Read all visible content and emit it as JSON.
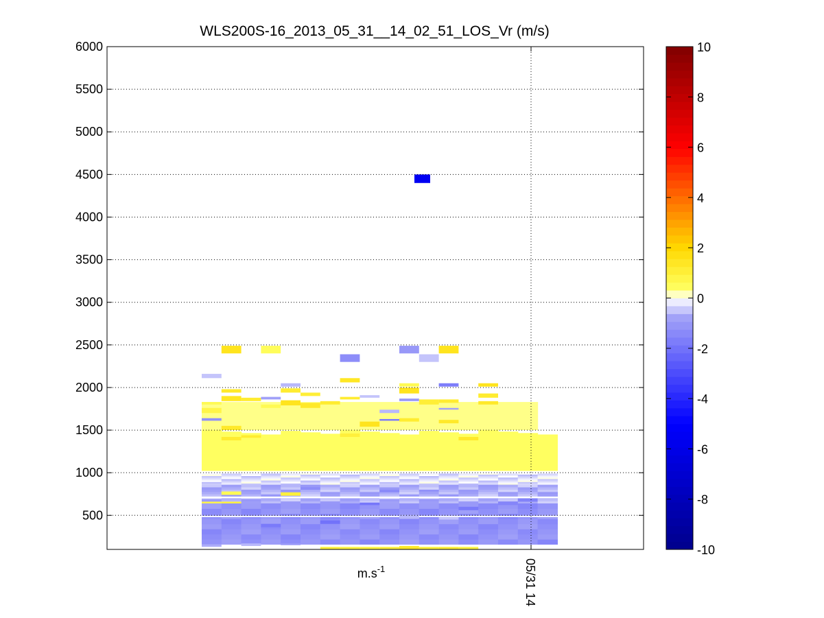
{
  "chart_data": {
    "type": "heatmap",
    "title": "WLS200S-16_2013_05_31__14_02_51_LOS_Vr (m/s)",
    "xlabel": "m.s-1",
    "xlabel_base": "m.s",
    "xlabel_exponent": "-1",
    "ylabel": "",
    "ylim": [
      100,
      6000
    ],
    "y_ticks": [
      500,
      1000,
      1500,
      2000,
      2500,
      3000,
      3500,
      4000,
      4500,
      5000,
      5500,
      6000
    ],
    "x_ticks": [
      "05/31 14"
    ],
    "grid": true,
    "colorbar": {
      "range": [
        -10,
        10
      ],
      "ticks": [
        -10,
        -8,
        -6,
        -4,
        -2,
        0,
        2,
        4,
        6,
        8,
        10
      ],
      "stops": [
        "#00008b",
        "#0000ff",
        "#a0a0f8",
        "#ffffff",
        "#ffff60",
        "#ffd800",
        "#ff0000",
        "#800000"
      ]
    },
    "columns": 18,
    "cells": [
      {
        "col": 8,
        "y0": 4400,
        "y1": 4500,
        "v": -5.5
      },
      {
        "col": 1,
        "y0": 2400,
        "y1": 2490,
        "v": 1.5
      },
      {
        "col": 3,
        "y0": 2400,
        "y1": 2490,
        "v": 0.5
      },
      {
        "col": 12,
        "y0": 2400,
        "y1": 2490,
        "v": 1.5
      },
      {
        "col": 7,
        "y0": 2300,
        "y1": 2390,
        "v": -1.3
      },
      {
        "col": 10,
        "y0": 2400,
        "y1": 2490,
        "v": -1.0
      },
      {
        "col": 11,
        "y0": 2300,
        "y1": 2390,
        "v": -0.5
      },
      {
        "col": 0,
        "y0": 2110,
        "y1": 2160,
        "v": -0.5
      },
      {
        "col": 7,
        "y0": 2060,
        "y1": 2110,
        "v": 1.4
      },
      {
        "col": 4,
        "y0": 2010,
        "y1": 2050,
        "v": -0.6
      },
      {
        "col": 10,
        "y0": 2010,
        "y1": 2050,
        "v": 0.6
      },
      {
        "col": 12,
        "y0": 2010,
        "y1": 2050,
        "v": -1.7
      },
      {
        "col": 14,
        "y0": 2010,
        "y1": 2050,
        "v": 1.5
      },
      {
        "col": 0,
        "y0": 1800,
        "y1": 1830,
        "v": 0.6
      },
      {
        "col": 0,
        "y0": 1700,
        "y1": 1760,
        "v": 0.8
      },
      {
        "col": 0,
        "y0": 1610,
        "y1": 1640,
        "v": -1.2
      },
      {
        "col": 1,
        "y0": 1940,
        "y1": 1980,
        "v": 1.3
      },
      {
        "col": 1,
        "y0": 1840,
        "y1": 1900,
        "v": 1.4
      },
      {
        "col": 1,
        "y0": 1500,
        "y1": 1550,
        "v": 1.3
      },
      {
        "col": 2,
        "y0": 1840,
        "y1": 1880,
        "v": 1.2
      },
      {
        "col": 3,
        "y0": 1860,
        "y1": 1890,
        "v": -0.8
      },
      {
        "col": 3,
        "y0": 1760,
        "y1": 1800,
        "v": 0.6
      },
      {
        "col": 4,
        "y0": 1940,
        "y1": 1990,
        "v": 1.2
      },
      {
        "col": 4,
        "y0": 1790,
        "y1": 1850,
        "v": 1.5
      },
      {
        "col": 5,
        "y0": 1900,
        "y1": 1940,
        "v": 1.1
      },
      {
        "col": 5,
        "y0": 1760,
        "y1": 1820,
        "v": 1.3
      },
      {
        "col": 6,
        "y0": 1800,
        "y1": 1840,
        "v": 1.2
      },
      {
        "col": 7,
        "y0": 1860,
        "y1": 1890,
        "v": 1.2
      },
      {
        "col": 7,
        "y0": 1420,
        "y1": 1460,
        "v": 1.0
      },
      {
        "col": 8,
        "y0": 1540,
        "y1": 1600,
        "v": 1.5
      },
      {
        "col": 8,
        "y0": 1880,
        "y1": 1910,
        "v": -0.5
      },
      {
        "col": 9,
        "y0": 1610,
        "y1": 1630,
        "v": -1.8
      },
      {
        "col": 9,
        "y0": 1700,
        "y1": 1740,
        "v": -0.6
      },
      {
        "col": 10,
        "y0": 1930,
        "y1": 2000,
        "v": 1.5
      },
      {
        "col": 10,
        "y0": 1600,
        "y1": 1640,
        "v": 1.2
      },
      {
        "col": 10,
        "y0": 1840,
        "y1": 1870,
        "v": -1.0
      },
      {
        "col": 11,
        "y0": 1800,
        "y1": 1860,
        "v": 1.1
      },
      {
        "col": 12,
        "y0": 1820,
        "y1": 1860,
        "v": 1.2
      },
      {
        "col": 12,
        "y0": 1580,
        "y1": 1620,
        "v": 1.3
      },
      {
        "col": 12,
        "y0": 1740,
        "y1": 1760,
        "v": -0.8
      },
      {
        "col": 13,
        "y0": 1380,
        "y1": 1420,
        "v": 1.3
      },
      {
        "col": 14,
        "y0": 1880,
        "y1": 1930,
        "v": 1.2
      },
      {
        "col": 14,
        "y0": 1800,
        "y1": 1840,
        "v": 1.3
      },
      {
        "col": 0,
        "y0": 1100,
        "y1": 1400,
        "v": 0.4
      },
      {
        "col": 1,
        "y0": 1380,
        "y1": 1420,
        "v": 1.2
      },
      {
        "col": 2,
        "y0": 1410,
        "y1": 1440,
        "v": 1.2
      },
      {
        "col": 4,
        "y0": 730,
        "y1": 770,
        "v": 1.0
      },
      {
        "col": 1,
        "y0": 740,
        "y1": 780,
        "v": 0.6
      },
      {
        "col": 1,
        "y0": 640,
        "y1": 660,
        "v": 1.0
      },
      {
        "col": 0,
        "y0": 640,
        "y1": 660,
        "v": 0.8
      },
      {
        "col": 5,
        "y0": 800,
        "y1": 830,
        "v": -1.3
      },
      {
        "col": 9,
        "y0": 770,
        "y1": 800,
        "v": -1.4
      },
      {
        "col": 11,
        "y0": 780,
        "y1": 800,
        "v": -1.2
      },
      {
        "col": 8,
        "y0": 620,
        "y1": 650,
        "v": -1.9
      },
      {
        "col": 6,
        "y0": 400,
        "y1": 440,
        "v": -2.0
      },
      {
        "col": 3,
        "y0": 360,
        "y1": 400,
        "v": -1.8
      },
      {
        "col": 10,
        "y0": 460,
        "y1": 500,
        "v": -0.6
      },
      {
        "col": 12,
        "y0": 450,
        "y1": 480,
        "v": -0.5
      },
      {
        "col": 13,
        "y0": 560,
        "y1": 600,
        "v": -1.8
      },
      {
        "col": 15,
        "y0": 620,
        "y1": 660,
        "v": -1.5
      },
      {
        "col": 16,
        "y0": 660,
        "y1": 700,
        "v": -1.6
      },
      {
        "col": 0,
        "y0": 130,
        "y1": 160,
        "v": -0.7
      },
      {
        "col": 2,
        "y0": 140,
        "y1": 170,
        "v": -0.6
      },
      {
        "col": 4,
        "y0": 150,
        "y1": 170,
        "v": -0.9
      },
      {
        "col": 6,
        "y0": 100,
        "y1": 130,
        "v": 1.0
      },
      {
        "col": 7,
        "y0": 100,
        "y1": 130,
        "v": 0.9
      },
      {
        "col": 8,
        "y0": 100,
        "y1": 130,
        "v": 0.9
      },
      {
        "col": 9,
        "y0": 100,
        "y1": 130,
        "v": 1.0
      },
      {
        "col": 10,
        "y0": 100,
        "y1": 140,
        "v": 1.3
      },
      {
        "col": 11,
        "y0": 100,
        "y1": 130,
        "v": 1.0
      },
      {
        "col": 12,
        "y0": 100,
        "y1": 130,
        "v": 1.1
      },
      {
        "col": 13,
        "y0": 100,
        "y1": 130,
        "v": 0.9
      }
    ]
  }
}
